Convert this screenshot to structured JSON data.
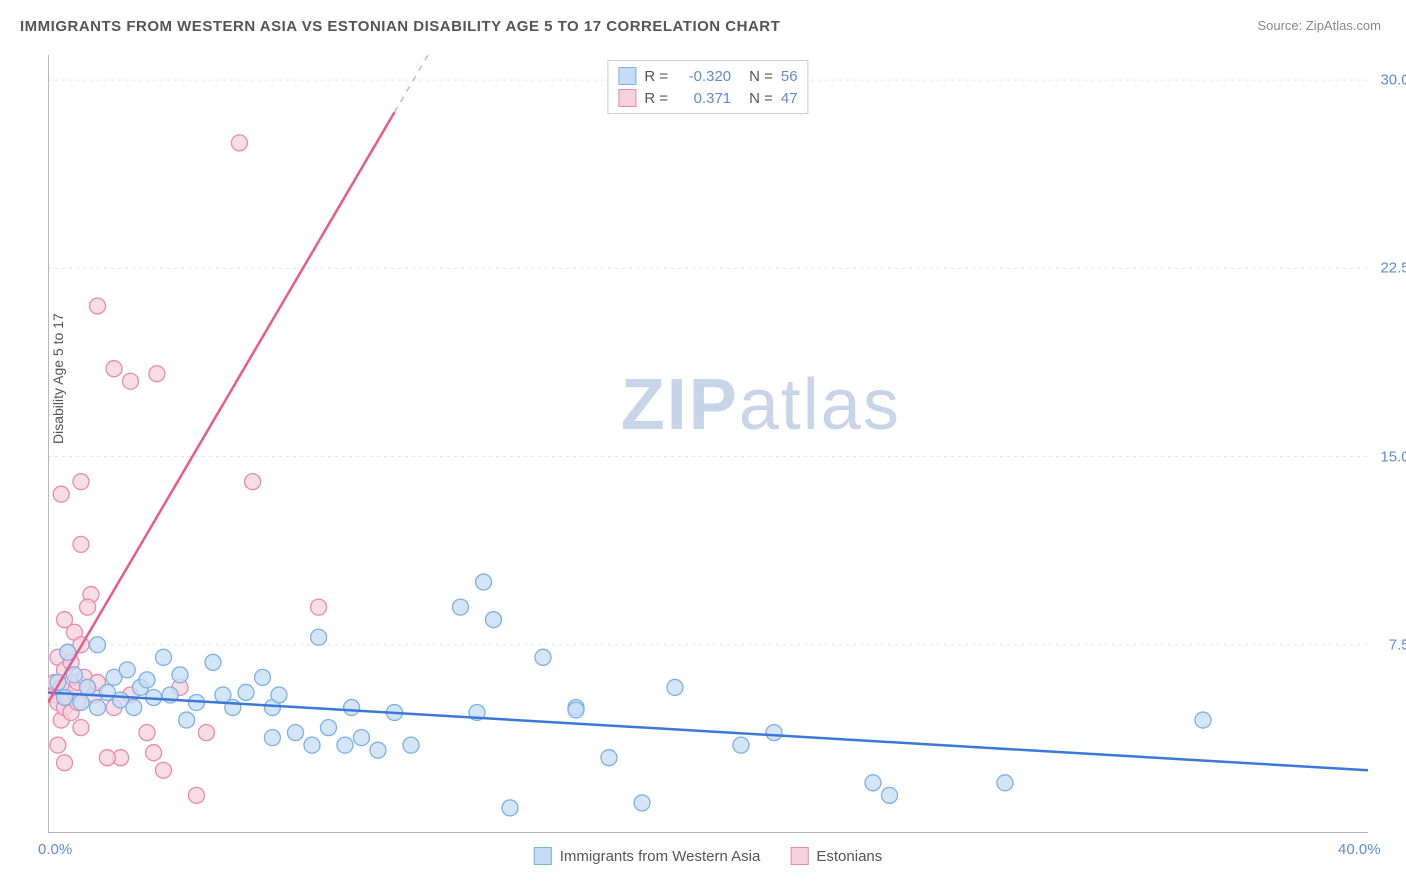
{
  "title": "IMMIGRANTS FROM WESTERN ASIA VS ESTONIAN DISABILITY AGE 5 TO 17 CORRELATION CHART",
  "source_label": "Source: ",
  "source_name": "ZipAtlas.com",
  "ylabel": "Disability Age 5 to 17",
  "watermark_bold": "ZIP",
  "watermark_light": "atlas",
  "chart": {
    "type": "scatter",
    "background_color": "#ffffff",
    "grid_color": "#e4e4e4",
    "axis_color": "#888888",
    "xlim": [
      0,
      40
    ],
    "ylim": [
      0,
      31
    ],
    "xticks": [
      {
        "value": 0,
        "label": "0.0%"
      },
      {
        "value": 40,
        "label": "40.0%"
      }
    ],
    "yticks": [
      {
        "value": 7.5,
        "label": "7.5%"
      },
      {
        "value": 15.0,
        "label": "15.0%"
      },
      {
        "value": 22.5,
        "label": "22.5%"
      },
      {
        "value": 30.0,
        "label": "30.0%"
      }
    ],
    "stats_legend": [
      {
        "color_fill": "#c5dcf4",
        "color_stroke": "#7bb0e6",
        "r_label": "R =",
        "r_value": "-0.320",
        "n_label": "N =",
        "n_value": "56"
      },
      {
        "color_fill": "#f7d1dd",
        "color_stroke": "#e98aac",
        "r_label": "R =",
        "r_value": "0.371",
        "n_label": "N =",
        "n_value": "47"
      }
    ],
    "bottom_legend": [
      {
        "color_fill": "#c5dcf4",
        "color_stroke": "#7bb0e6",
        "label": "Immigrants from Western Asia"
      },
      {
        "color_fill": "#f7d1dd",
        "color_stroke": "#e98aac",
        "label": "Estonians"
      }
    ],
    "series": [
      {
        "name": "Immigrants from Western Asia",
        "marker_fill": "#c5dcf4",
        "marker_stroke": "#7bb0e6",
        "marker_opacity": 0.75,
        "marker_radius": 8,
        "trend_color": "#3b78d8",
        "trend_width": 2.5,
        "trend_x1": 0,
        "trend_y1": 5.6,
        "trend_x2": 40,
        "trend_y2": 2.5,
        "points": [
          [
            0.3,
            6.0
          ],
          [
            0.5,
            5.4
          ],
          [
            0.6,
            7.2
          ],
          [
            0.8,
            6.3
          ],
          [
            1.0,
            5.2
          ],
          [
            1.2,
            5.8
          ],
          [
            1.5,
            7.5
          ],
          [
            1.5,
            5.0
          ],
          [
            1.8,
            5.6
          ],
          [
            2.0,
            6.2
          ],
          [
            2.2,
            5.3
          ],
          [
            2.4,
            6.5
          ],
          [
            2.6,
            5.0
          ],
          [
            2.8,
            5.8
          ],
          [
            3.0,
            6.1
          ],
          [
            3.2,
            5.4
          ],
          [
            3.5,
            7.0
          ],
          [
            3.7,
            5.5
          ],
          [
            4.0,
            6.3
          ],
          [
            4.2,
            4.5
          ],
          [
            4.5,
            5.2
          ],
          [
            5.0,
            6.8
          ],
          [
            5.3,
            5.5
          ],
          [
            5.6,
            5.0
          ],
          [
            6.0,
            5.6
          ],
          [
            6.5,
            6.2
          ],
          [
            6.8,
            5.0
          ],
          [
            6.8,
            3.8
          ],
          [
            7.0,
            5.5
          ],
          [
            7.5,
            4.0
          ],
          [
            8.0,
            3.5
          ],
          [
            8.2,
            7.8
          ],
          [
            8.5,
            4.2
          ],
          [
            9.0,
            3.5
          ],
          [
            9.2,
            5.0
          ],
          [
            9.5,
            3.8
          ],
          [
            10.0,
            3.3
          ],
          [
            10.5,
            4.8
          ],
          [
            11.0,
            3.5
          ],
          [
            12.5,
            9.0
          ],
          [
            13.0,
            4.8
          ],
          [
            13.2,
            10.0
          ],
          [
            13.5,
            8.5
          ],
          [
            14.0,
            1.0
          ],
          [
            15.0,
            7.0
          ],
          [
            16.0,
            5.0
          ],
          [
            16.0,
            4.9
          ],
          [
            17.0,
            3.0
          ],
          [
            18.0,
            1.2
          ],
          [
            19.0,
            5.8
          ],
          [
            21.0,
            3.5
          ],
          [
            22.0,
            4.0
          ],
          [
            25.0,
            2.0
          ],
          [
            25.5,
            1.5
          ],
          [
            29.0,
            2.0
          ],
          [
            35.0,
            4.5
          ]
        ]
      },
      {
        "name": "Estonians",
        "marker_fill": "#f7d1dd",
        "marker_stroke": "#e98aac",
        "marker_opacity": 0.75,
        "marker_radius": 8,
        "trend_color": "#e85a8a",
        "trend_width": 2.5,
        "trend_dash_from_x": 10.5,
        "trend_x1": 0,
        "trend_y1": 5.2,
        "trend_x2": 20,
        "trend_y2": 50.0,
        "points": [
          [
            0.2,
            5.5
          ],
          [
            0.2,
            6.0
          ],
          [
            0.3,
            5.2
          ],
          [
            0.3,
            7.0
          ],
          [
            0.4,
            5.8
          ],
          [
            0.4,
            4.5
          ],
          [
            0.5,
            6.5
          ],
          [
            0.5,
            5.0
          ],
          [
            0.6,
            7.2
          ],
          [
            0.6,
            5.4
          ],
          [
            0.7,
            6.8
          ],
          [
            0.7,
            4.8
          ],
          [
            0.8,
            5.6
          ],
          [
            0.8,
            8.0
          ],
          [
            0.9,
            6.0
          ],
          [
            0.9,
            5.2
          ],
          [
            1.0,
            7.5
          ],
          [
            1.0,
            4.2
          ],
          [
            1.1,
            6.2
          ],
          [
            1.2,
            5.8
          ],
          [
            1.3,
            9.5
          ],
          [
            1.4,
            5.5
          ],
          [
            1.5,
            6.0
          ],
          [
            1.0,
            11.5
          ],
          [
            0.4,
            13.5
          ],
          [
            1.0,
            14.0
          ],
          [
            0.5,
            8.5
          ],
          [
            1.2,
            9.0
          ],
          [
            2.0,
            5.0
          ],
          [
            2.2,
            3.0
          ],
          [
            2.5,
            5.5
          ],
          [
            3.0,
            4.0
          ],
          [
            3.5,
            2.5
          ],
          [
            4.0,
            5.8
          ],
          [
            4.5,
            1.5
          ],
          [
            4.8,
            4.0
          ],
          [
            1.5,
            21.0
          ],
          [
            2.0,
            18.5
          ],
          [
            2.5,
            18.0
          ],
          [
            3.3,
            18.3
          ],
          [
            5.8,
            27.5
          ],
          [
            6.2,
            14.0
          ],
          [
            8.2,
            9.0
          ],
          [
            0.3,
            3.5
          ],
          [
            0.5,
            2.8
          ],
          [
            1.8,
            3.0
          ],
          [
            3.2,
            3.2
          ]
        ]
      }
    ]
  }
}
